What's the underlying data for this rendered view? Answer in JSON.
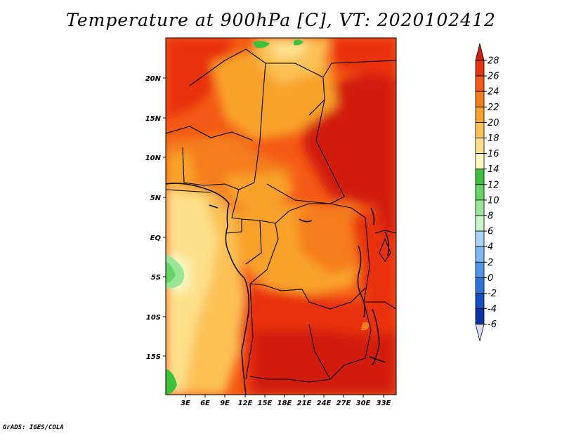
{
  "title": "Temperature at 900hPa [C], VT: 2020102412",
  "credit": "GrADS: IGES/COLA",
  "map": {
    "lon_labels": [
      "3E",
      "6E",
      "9E",
      "12E",
      "15E",
      "18E",
      "21E",
      "24E",
      "27E",
      "30E",
      "33E"
    ],
    "lat_labels": [
      "20N",
      "15N",
      "10N",
      "5N",
      "EQ",
      "5S",
      "10S",
      "15S"
    ]
  },
  "colorbar": {
    "levels": [
      "28",
      "26",
      "24",
      "22",
      "20",
      "18",
      "16",
      "14",
      "12",
      "10",
      "8",
      "6",
      "4",
      "2",
      "0",
      "-2",
      "-4",
      "-6"
    ],
    "colors": [
      "#d11f0e",
      "#e83310",
      "#f45a15",
      "#f47d1b",
      "#f8a22a",
      "#fbc155",
      "#fde08a",
      "#fbf7c0",
      "#3cc13c",
      "#66d566",
      "#98e698",
      "#c8f6c8",
      "#a9d4f8",
      "#7db8f0",
      "#4f96e6",
      "#2c74dc",
      "#1250c4",
      "#0a34a6",
      "#0a1676"
    ]
  }
}
